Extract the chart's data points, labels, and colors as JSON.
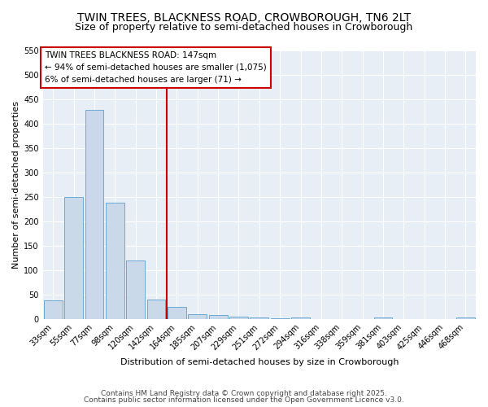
{
  "title": "TWIN TREES, BLACKNESS ROAD, CROWBOROUGH, TN6 2LT",
  "subtitle": "Size of property relative to semi-detached houses in Crowborough",
  "xlabel": "Distribution of semi-detached houses by size in Crowborough",
  "ylabel": "Number of semi-detached properties",
  "bar_labels": [
    "33sqm",
    "55sqm",
    "77sqm",
    "98sqm",
    "120sqm",
    "142sqm",
    "164sqm",
    "185sqm",
    "207sqm",
    "229sqm",
    "251sqm",
    "272sqm",
    "294sqm",
    "316sqm",
    "338sqm",
    "359sqm",
    "381sqm",
    "403sqm",
    "425sqm",
    "446sqm",
    "468sqm"
  ],
  "bar_values": [
    38,
    250,
    428,
    237,
    119,
    40,
    25,
    10,
    8,
    5,
    3,
    1,
    3,
    0,
    0,
    0,
    3,
    0,
    0,
    0,
    3
  ],
  "bar_color": "#c9d9ea",
  "bar_edge_color": "#6aaad4",
  "vline_x_index": 5.5,
  "vline_color": "#cc0000",
  "annotation_title": "TWIN TREES BLACKNESS ROAD: 147sqm",
  "annotation_line1": "← 94% of semi-detached houses are smaller (1,075)",
  "annotation_line2": "6% of semi-detached houses are larger (71) →",
  "ylim": [
    0,
    550
  ],
  "yticks": [
    0,
    50,
    100,
    150,
    200,
    250,
    300,
    350,
    400,
    450,
    500,
    550
  ],
  "footer_line1": "Contains HM Land Registry data © Crown copyright and database right 2025.",
  "footer_line2": "Contains public sector information licensed under the Open Government Licence v3.0.",
  "fig_bg_color": "#ffffff",
  "plot_bg_color": "#e8eef5",
  "title_fontsize": 10,
  "subtitle_fontsize": 9,
  "annotation_fontsize": 7.5,
  "axis_label_fontsize": 8,
  "tick_fontsize": 7
}
